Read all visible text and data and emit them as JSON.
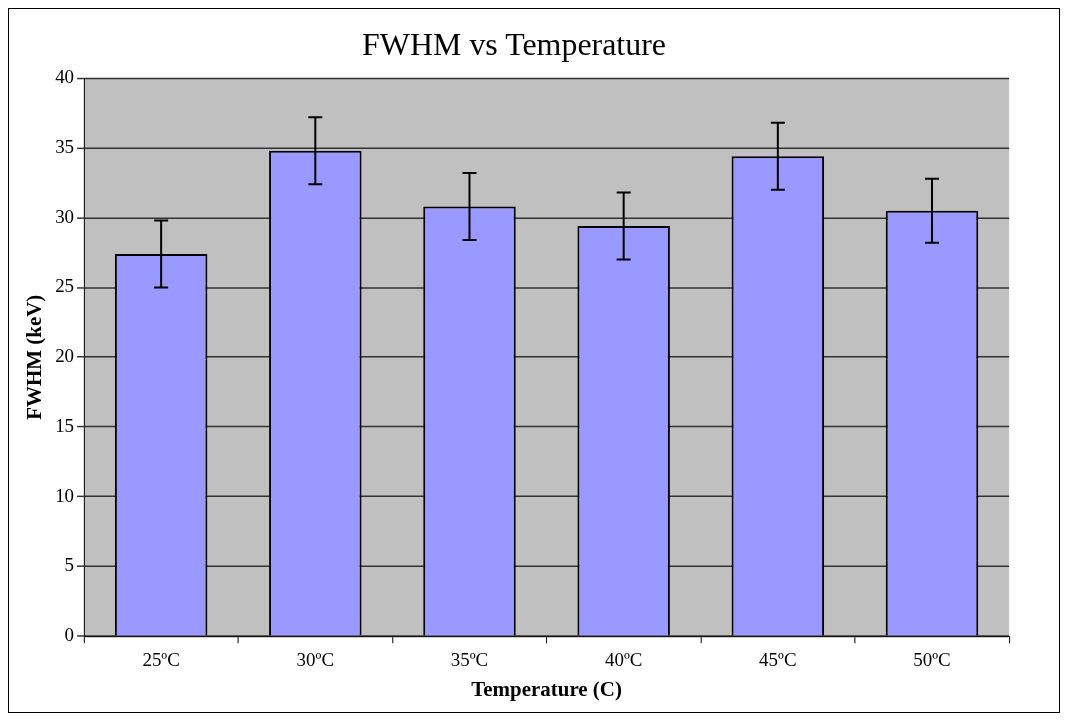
{
  "chart_data": {
    "type": "bar",
    "title": "FWHM vs Temperature",
    "xlabel": "Temperature (C)",
    "ylabel": "FWHM (keV)",
    "categories": [
      "25ºC",
      "30ºC",
      "35ºC",
      "40ºC",
      "45ºC",
      "50ºC"
    ],
    "values": [
      27.4,
      34.8,
      30.8,
      29.4,
      34.4,
      30.5
    ],
    "errors": [
      2.4,
      2.4,
      2.4,
      2.4,
      2.4,
      2.3
    ],
    "color": "#9999ff",
    "ylim": [
      0,
      40
    ],
    "yticks": [
      0,
      5,
      10,
      15,
      20,
      25,
      30,
      35,
      40
    ],
    "grid": "y",
    "legend": false
  }
}
